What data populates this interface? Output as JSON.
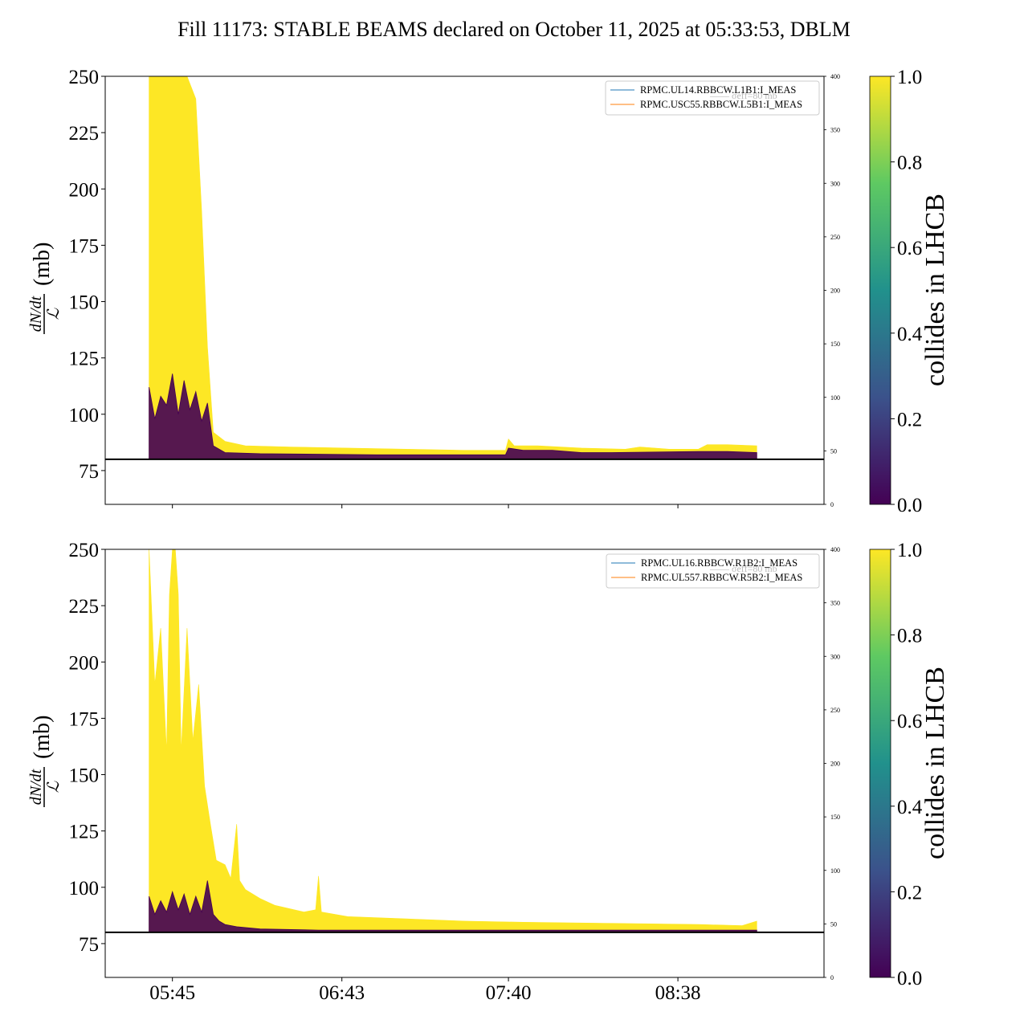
{
  "title": "Fill 11173: STABLE BEAMS declared on October 11, 2025 at 05:33:53, DBLM",
  "colormap": {
    "name": "viridis",
    "stops": [
      "#440154",
      "#3b528b",
      "#21918c",
      "#5ec962",
      "#fde725"
    ],
    "low_color": "#440154",
    "high_color": "#fde725",
    "ticks": [
      "0.0",
      "0.2",
      "0.4",
      "0.6",
      "0.8",
      "1.0"
    ],
    "label": "collides in LHCB"
  },
  "x_axis": {
    "ticks": [
      "05:45",
      "06:43",
      "07:40",
      "08:38"
    ],
    "tick_values_min": [
      10,
      68,
      125,
      183
    ],
    "range_min": [
      -13,
      233
    ],
    "data_range_min": [
      2,
      210
    ]
  },
  "chart_data": [
    {
      "type": "line",
      "name": "beam1-panel",
      "ylabel_main": "dN/dt",
      "ylabel_den": "ℒ",
      "ylabel_unit": "(mb)",
      "ylim": [
        60,
        250
      ],
      "yticks": [
        "75",
        "100",
        "125",
        "150",
        "175",
        "200",
        "225",
        "250"
      ],
      "ytick_values": [
        75,
        100,
        125,
        150,
        175,
        200,
        225,
        250
      ],
      "ylim_right": [
        0,
        400
      ],
      "yticks_right": [
        "0",
        "50",
        "100",
        "150",
        "200",
        "250",
        "300",
        "350",
        "400"
      ],
      "ytick_right_values": [
        0,
        50,
        100,
        150,
        200,
        250,
        300,
        350,
        400
      ],
      "reference_line": 80,
      "legend": [
        {
          "label": "RPMC.UL14.RBBCW.L1B1:I_MEAS",
          "color": "#1f77b4"
        },
        {
          "label": "RPMC.USC55.RBBCW.L5B1:I_MEAS",
          "color": "#ff7f0e"
        }
      ],
      "legend_faint": "—— σeff=80 mb",
      "yellow_envelope": {
        "x": [
          2,
          5,
          9,
          12,
          15,
          18,
          20,
          22,
          24,
          28,
          35,
          50,
          70,
          90,
          110,
          124,
          125,
          127,
          135,
          150,
          165,
          170,
          180,
          190,
          193,
          200,
          210
        ],
        "y": [
          250,
          250,
          250,
          250,
          250,
          240,
          190,
          130,
          92,
          88,
          86,
          85.5,
          85,
          84.5,
          84,
          84,
          89,
          86,
          86,
          85,
          84.5,
          85.5,
          84.5,
          84.5,
          86.5,
          86.5,
          86
        ]
      },
      "purple_band": {
        "x": [
          2,
          4,
          6,
          8,
          10,
          12,
          14,
          16,
          18,
          20,
          22,
          24,
          28,
          40,
          80,
          124,
          125,
          130,
          140,
          150,
          160,
          190,
          200,
          210
        ],
        "y": [
          112,
          98,
          108,
          104,
          118,
          100,
          115,
          102,
          110,
          97,
          105,
          86,
          83,
          82.5,
          82,
          82,
          85,
          84,
          84,
          83,
          83,
          83.5,
          83.5,
          83
        ]
      }
    },
    {
      "type": "line",
      "name": "beam2-panel",
      "ylabel_main": "dN/dt",
      "ylabel_den": "ℒ",
      "ylabel_unit": "(mb)",
      "ylim": [
        60,
        250
      ],
      "yticks": [
        "75",
        "100",
        "125",
        "150",
        "175",
        "200",
        "225",
        "250"
      ],
      "ytick_values": [
        75,
        100,
        125,
        150,
        175,
        200,
        225,
        250
      ],
      "ylim_right": [
        0,
        400
      ],
      "yticks_right": [
        "0",
        "50",
        "100",
        "150",
        "200",
        "250",
        "300",
        "350",
        "400"
      ],
      "ytick_right_values": [
        0,
        50,
        100,
        150,
        200,
        250,
        300,
        350,
        400
      ],
      "reference_line": 80,
      "legend": [
        {
          "label": "RPMC.UL16.RBBCW.R1B2:I_MEAS",
          "color": "#1f77b4"
        },
        {
          "label": "RPMC.UL557.RBBCW.R5B2:I_MEAS",
          "color": "#ff7f0e"
        }
      ],
      "legend_faint": "—— σeff=80 mb",
      "yellow_envelope": {
        "x": [
          2,
          4,
          6,
          8,
          9,
          10,
          11,
          12,
          13,
          15,
          17,
          19,
          21,
          23,
          25,
          28,
          30,
          32,
          33,
          35,
          40,
          45,
          55,
          59,
          60,
          61,
          70,
          90,
          110,
          130,
          160,
          190,
          205,
          210
        ],
        "y": [
          250,
          190,
          215,
          160,
          230,
          250,
          250,
          230,
          160,
          215,
          165,
          190,
          145,
          128,
          112,
          110,
          104,
          128,
          103,
          99,
          95,
          92,
          89,
          90,
          105,
          89,
          87,
          86,
          85,
          84.5,
          84,
          83.5,
          83,
          85
        ]
      },
      "purple_band": {
        "x": [
          2,
          4,
          6,
          8,
          10,
          12,
          14,
          16,
          18,
          20,
          22,
          24,
          26,
          28,
          32,
          40,
          60,
          100,
          150,
          210
        ],
        "y": [
          96,
          88,
          94,
          89,
          98,
          90,
          97,
          88,
          96,
          89,
          103,
          88,
          85,
          83.5,
          82.5,
          81.5,
          81,
          81,
          81,
          81
        ]
      }
    }
  ]
}
